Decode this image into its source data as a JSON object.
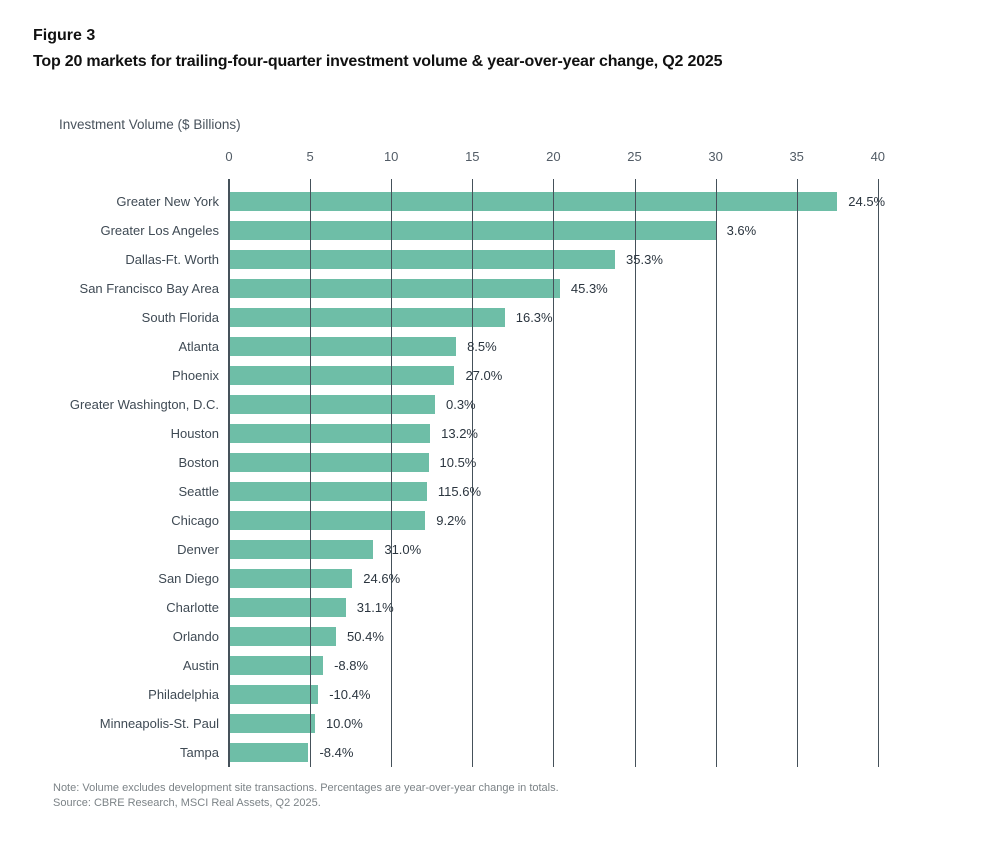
{
  "figure": {
    "label": "Figure 3",
    "title": "Top 20 markets for trailing-four-quarter investment volume & year-over-year change, Q2 2025"
  },
  "axis_title": "Investment Volume ($ Billions)",
  "footer": {
    "note": "Note: Volume excludes development site transactions. Percentages are year-over-year change in totals.",
    "source": "Source: CBRE Research, MSCI Real Assets, Q2 2025."
  },
  "colors": {
    "bar": "#6ebea7",
    "gridline": "#45515a",
    "category_label": "#3f4a54",
    "tick_label": "#525c66",
    "data_label": "#2b353f",
    "title": "#111111",
    "note": "#7c8387"
  },
  "chart_data": {
    "type": "bar",
    "orientation": "horizontal",
    "title": "Top 20 markets for trailing-four-quarter investment volume & year-over-year change, Q2 2025",
    "xlabel": "Investment Volume ($ Billions)",
    "xlim": [
      0,
      40
    ],
    "xticks": [
      0,
      5,
      10,
      15,
      20,
      25,
      30,
      35,
      40
    ],
    "grid": true,
    "legend": "none",
    "categories": [
      "Greater New York",
      "Greater Los Angeles",
      "Dallas-Ft. Worth",
      "San Francisco Bay Area",
      "South Florida",
      "Atlanta",
      "Phoenix",
      "Greater Washington, D.C.",
      "Houston",
      "Boston",
      "Seattle",
      "Chicago",
      "Denver",
      "San Diego",
      "Charlotte",
      "Orlando",
      "Austin",
      "Philadelphia",
      "Minneapolis-St. Paul",
      "Tampa"
    ],
    "values": [
      37.5,
      30.0,
      23.8,
      20.4,
      17.0,
      14.0,
      13.9,
      12.7,
      12.4,
      12.3,
      12.2,
      12.1,
      8.9,
      7.6,
      7.2,
      6.6,
      5.8,
      5.5,
      5.3,
      4.9
    ],
    "yoy_change_labels": [
      "24.5%",
      "3.6%",
      "35.3%",
      "45.3%",
      "16.3%",
      "8.5%",
      "27.0%",
      "0.3%",
      "13.2%",
      "10.5%",
      "115.6%",
      "9.2%",
      "31.0%",
      "24.6%",
      "31.1%",
      "50.4%",
      "-8.8%",
      "-10.4%",
      "10.0%",
      "-8.4%"
    ]
  }
}
